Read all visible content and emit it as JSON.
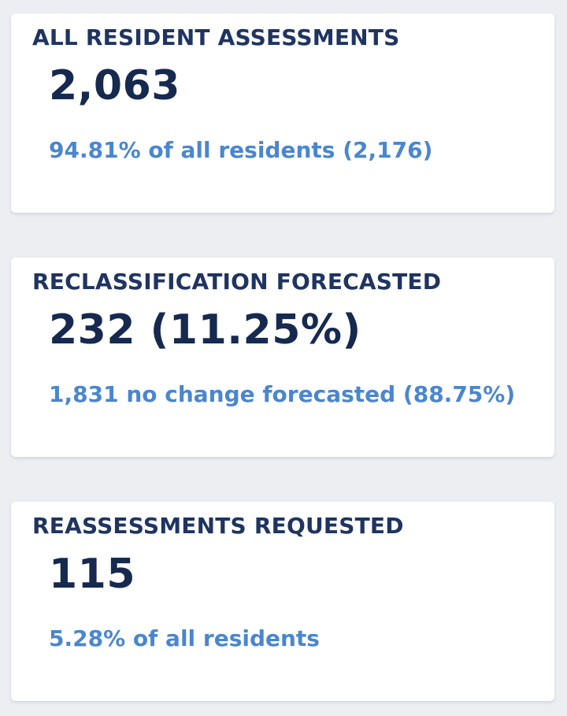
{
  "cards": [
    {
      "title": "ALL RESIDENT ASSESSMENTS",
      "value": "2,063",
      "subtext": "94.81% of all residents (2,176)"
    },
    {
      "title": "RECLASSIFICATION FORECASTED",
      "value": "232 (11.25%)",
      "subtext": "1,831 no change forecasted (88.75%)"
    },
    {
      "title": "REASSESSMENTS REQUESTED",
      "value": "115",
      "subtext": "5.28% of all residents"
    }
  ],
  "colors": {
    "background": "#eceef2",
    "card": "#ffffff",
    "title": "#1f3460",
    "value": "#16294f",
    "subtext": "#4a86cf"
  }
}
